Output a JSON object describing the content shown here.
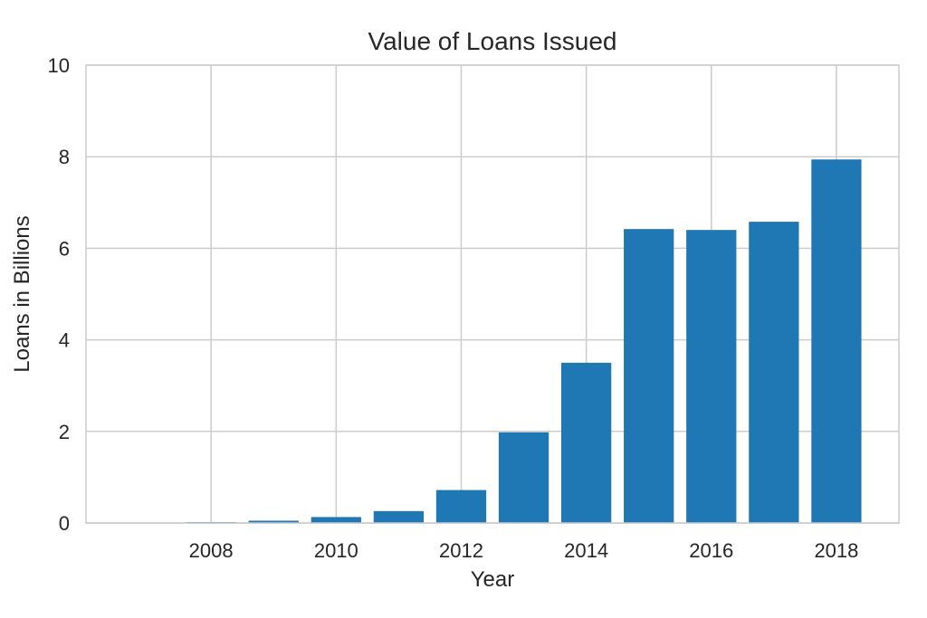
{
  "chart_data": {
    "type": "bar",
    "title": "Value of Loans Issued",
    "xlabel": "Year",
    "ylabel": "Loans in Billions",
    "categories": [
      2007,
      2008,
      2009,
      2010,
      2011,
      2012,
      2013,
      2014,
      2015,
      2016,
      2017,
      2018
    ],
    "values": [
      0.005,
      0.02,
      0.05,
      0.13,
      0.26,
      0.72,
      1.98,
      3.5,
      6.42,
      6.4,
      6.58,
      7.94
    ],
    "xlim": [
      2006,
      2019
    ],
    "ylim": [
      0,
      10
    ],
    "xticks": [
      2008,
      2010,
      2012,
      2014,
      2016,
      2018
    ],
    "yticks": [
      0,
      2,
      4,
      6,
      8,
      10
    ],
    "grid": true,
    "colors": {
      "bar": "#1f77b4",
      "grid": "#cccccc",
      "spine": "#cccccc",
      "text": "#262626"
    }
  }
}
